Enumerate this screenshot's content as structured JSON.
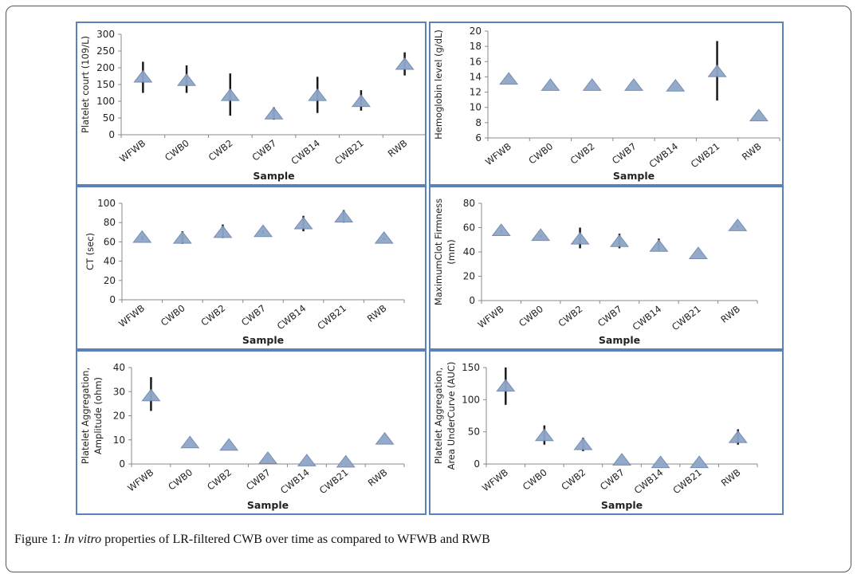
{
  "figure": {
    "caption_label": "Figure 1:",
    "caption_italic": "In vitro",
    "caption_rest": " properties of LR-filtered CWB over time as compared to WFWB and RWB"
  },
  "colors": {
    "marker_fill": "#8ea6c8",
    "marker_stroke": "#6f88ad",
    "error_bar": "#1a1a1a",
    "panel_border": "#5b82b8"
  },
  "chart_data": [
    {
      "type": "scatter",
      "title": "",
      "xlabel": "Sample",
      "ylabel": "Platelet court (109/L)",
      "categories": [
        "WFWB",
        "CWB0",
        "CWB2",
        "CWB7",
        "CWB14",
        "CWB21",
        "RWB"
      ],
      "values": [
        170,
        160,
        115,
        60,
        115,
        97,
        208
      ],
      "error_low": [
        125,
        125,
        57,
        45,
        65,
        72,
        177
      ],
      "error_high": [
        218,
        207,
        183,
        82,
        173,
        133,
        246
      ],
      "ylim": [
        0,
        300
      ],
      "yticks": [
        0,
        50,
        100,
        150,
        200,
        250,
        300
      ],
      "grid": false,
      "legend": "none"
    },
    {
      "type": "scatter",
      "title": "",
      "xlabel": "Sample",
      "ylabel": "Hemoglobin level (g/dL)",
      "categories": [
        "WFWB",
        "CWB0",
        "CWB2",
        "CWB7",
        "CWB14",
        "CWB21",
        "RWB"
      ],
      "values": [
        13.6,
        12.8,
        12.8,
        12.8,
        12.7,
        14.6,
        8.8
      ],
      "error_low": [
        13.6,
        12.8,
        12.8,
        12.8,
        12.7,
        10.9,
        8.8
      ],
      "error_high": [
        13.6,
        12.8,
        12.8,
        12.8,
        12.7,
        18.7,
        8.8
      ],
      "ylim": [
        6,
        20
      ],
      "yticks": [
        6,
        8,
        10,
        12,
        14,
        16,
        18,
        20
      ],
      "grid": false,
      "legend": "none"
    },
    {
      "type": "scatter",
      "title": "",
      "xlabel": "Sample",
      "ylabel": "CT (sec)",
      "categories": [
        "WFWB",
        "CWB0",
        "CWB2",
        "CWB7",
        "CWB14",
        "CWB21",
        "RWB"
      ],
      "values": [
        64,
        63,
        69,
        70,
        78,
        85,
        63
      ],
      "error_low": [
        62,
        58,
        64,
        68,
        71,
        80,
        62
      ],
      "error_high": [
        66,
        71,
        78,
        72,
        87,
        93,
        64
      ],
      "ylim": [
        0,
        100
      ],
      "yticks": [
        0,
        20,
        40,
        60,
        80,
        100
      ],
      "grid": false,
      "legend": "none"
    },
    {
      "type": "scatter",
      "title": "",
      "xlabel": "Sample",
      "ylabel": "MaximumClot Firmness (mm)",
      "categories": [
        "WFWB",
        "CWB0",
        "CWB2",
        "CWB7",
        "CWB14",
        "CWB21",
        "RWB"
      ],
      "values": [
        57,
        53,
        50,
        48,
        44,
        38,
        61
      ],
      "error_low": [
        56,
        52,
        43,
        43,
        41,
        38,
        60
      ],
      "error_high": [
        58,
        54,
        60,
        55,
        51,
        38,
        62
      ],
      "ylim": [
        0,
        80
      ],
      "yticks": [
        0,
        20,
        40,
        60,
        80
      ],
      "grid": false,
      "legend": "none"
    },
    {
      "type": "scatter",
      "title": "",
      "xlabel": "Sample",
      "ylabel": "Platelet Aggregation, Amplitude (ohm)",
      "categories": [
        "WFWB",
        "CWB0",
        "CWB2",
        "CWB7",
        "CWB14",
        "CWB21",
        "RWB"
      ],
      "values": [
        28,
        8.5,
        7.5,
        2,
        1,
        0.5,
        10
      ],
      "error_low": [
        22,
        8.5,
        7.5,
        2,
        1,
        0.5,
        10
      ],
      "error_high": [
        36,
        8.5,
        7.5,
        2,
        1,
        0.5,
        10
      ],
      "ylim": [
        0,
        40
      ],
      "yticks": [
        0,
        10,
        20,
        30,
        40
      ],
      "grid": false,
      "legend": "none"
    },
    {
      "type": "scatter",
      "title": "",
      "xlabel": "Sample",
      "ylabel": "Platelet Aggregation, Area UnderCurve (AUC)",
      "categories": [
        "WFWB",
        "CWB0",
        "CWB2",
        "CWB7",
        "CWB14",
        "CWB21",
        "RWB"
      ],
      "values": [
        120,
        43,
        29,
        5,
        1,
        1,
        40
      ],
      "error_low": [
        92,
        30,
        20,
        5,
        1,
        1,
        30
      ],
      "error_high": [
        150,
        60,
        41,
        5,
        1,
        1,
        54
      ],
      "ylim": [
        0,
        150
      ],
      "yticks": [
        0,
        50,
        100,
        150
      ],
      "grid": false,
      "legend": "none"
    }
  ]
}
